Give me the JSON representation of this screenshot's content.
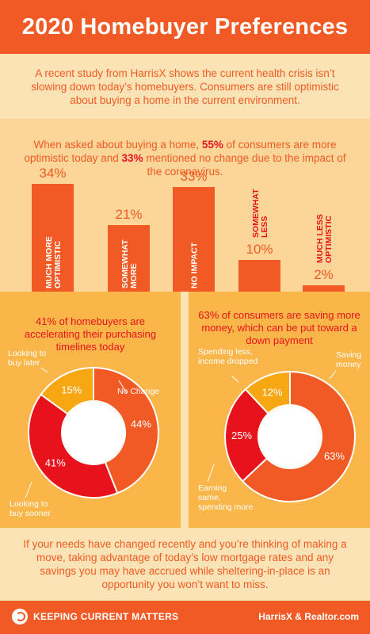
{
  "header": {
    "title": "2020 Homebuyer Preferences"
  },
  "intro": {
    "text": "A recent study from HarrisX shows the current health crisis isn’t slowing down today’s homebuyers. Consumers are still optimistic about buying a home in the current environment."
  },
  "bars_lead": {
    "part1": "When asked about buying a home, ",
    "pct1": "55%",
    "part2": " of consumers are more optimistic today and ",
    "pct2": "33%",
    "part3": " mentioned no change due to the impact of the coronavirus."
  },
  "colors": {
    "orange": "#f15a24",
    "red": "#e8121c",
    "gold": "#f6a712",
    "light": "#fbe3b5",
    "mid": "#fcd598",
    "panel": "#fab649"
  },
  "chart_data": [
    {
      "type": "bar",
      "categories": [
        "MUCH MORE OPTIMISTIC",
        "SOMEWHAT MORE",
        "NO IMPACT",
        "SOMEWHAT LESS",
        "MUCH LESS OPTIMISTIC"
      ],
      "values": [
        34,
        21,
        33,
        10,
        2
      ],
      "value_labels": [
        "34%",
        "21%",
        "33%",
        "10%",
        "2%"
      ],
      "category_lines": [
        [
          "MUCH MORE",
          "OPTIMISTIC"
        ],
        [
          "SOMEWHAT",
          "MORE"
        ],
        [
          "NO IMPACT"
        ],
        [
          "SOMEWHAT",
          "LESS"
        ],
        [
          "MUCH LESS",
          "OPTIMISTIC"
        ]
      ]
    },
    {
      "type": "pie",
      "title": "41% of homebuyers are accelerating their purchasing timelines today",
      "slices": [
        {
          "label": "No Change",
          "value": 44,
          "value_label": "44%",
          "color": "#f15a24"
        },
        {
          "label": "Looking to buy sooner",
          "value": 41,
          "value_label": "41%",
          "color": "#e8121c"
        },
        {
          "label": "Looking to buy later",
          "value": 15,
          "value_label": "15%",
          "color": "#f6a712"
        }
      ],
      "labels": {
        "no_change": "No Change",
        "sooner1": "Looking to",
        "sooner2": "buy sooner",
        "later1": "Looking to",
        "later2": "buy later"
      }
    },
    {
      "type": "pie",
      "title": "63% of consumers are saving more money, which can be put toward a down payment",
      "slices": [
        {
          "label": "Saving money",
          "value": 63,
          "value_label": "63%",
          "color": "#f15a24"
        },
        {
          "label": "Earning same, spending more",
          "value": 25,
          "value_label": "25%",
          "color": "#e8121c"
        },
        {
          "label": "Spending less, income dropped",
          "value": 12,
          "value_label": "12%",
          "color": "#f6a712"
        }
      ],
      "labels": {
        "saving1": "Saving",
        "saving2": "money",
        "earning1": "Earning",
        "earning2": "same,",
        "earning3": "spending more",
        "spending1": "Spending less,",
        "spending2": "income dropped"
      }
    }
  ],
  "outro": {
    "text": "If your needs have changed recently and you’re thinking of making a move, taking advantage of today’s low mortgage rates and any savings you may have accrued while sheltering-in-place is an opportunity you won’t want to miss."
  },
  "footer": {
    "brand": "KEEPING CURRENT MATTERS",
    "source": "HarrisX & Realtor.com"
  }
}
